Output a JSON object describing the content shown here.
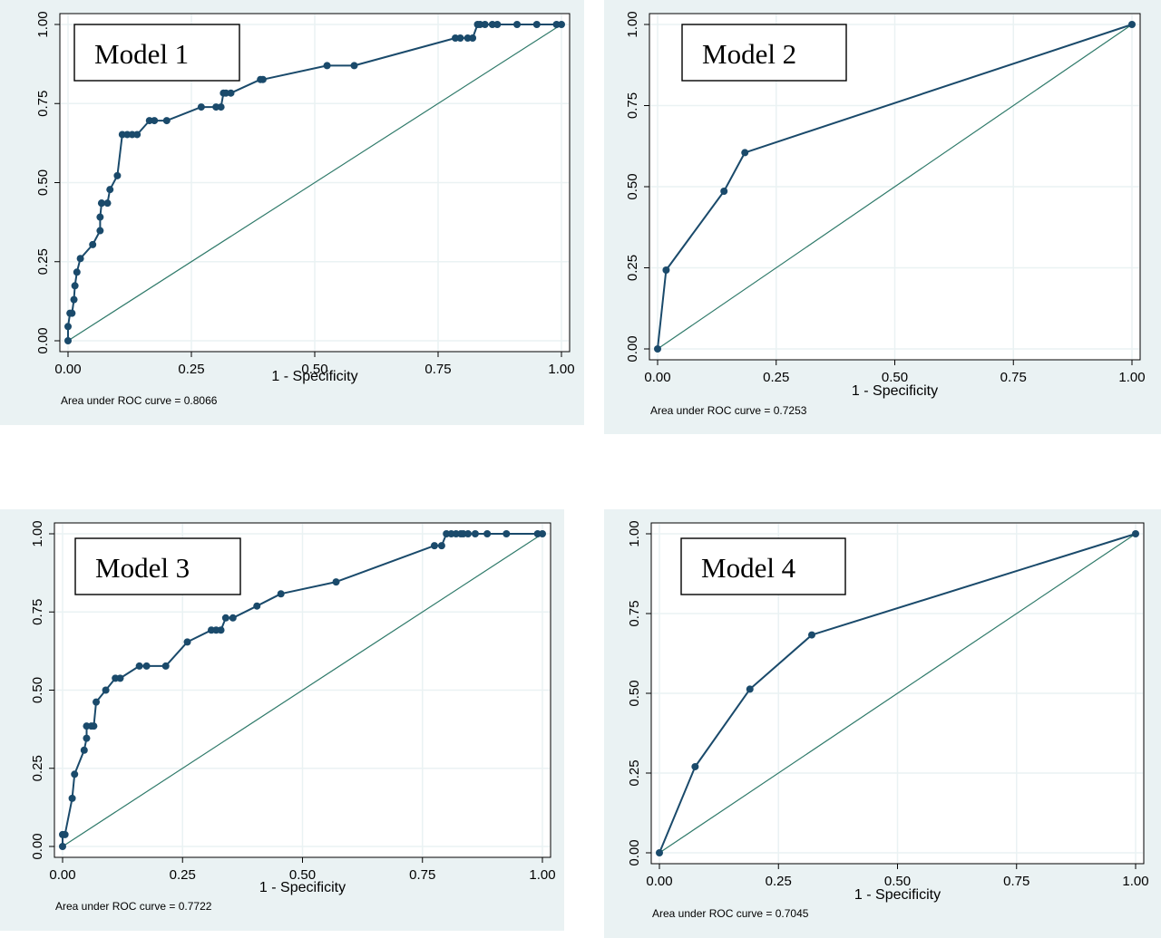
{
  "chart_data": [
    {
      "type": "line",
      "title": "Model 1",
      "xlabel": "1 - Specificity",
      "ylabel": "",
      "note": "Area under ROC curve = 0.8066",
      "xlim": [
        0,
        1
      ],
      "ylim": [
        0,
        1
      ],
      "xticks": [
        "0.00",
        "0.25",
        "0.50",
        "0.75",
        "1.00"
      ],
      "yticks": [
        "0.00",
        "0.25",
        "0.50",
        "0.75",
        "1.00"
      ],
      "grid": true,
      "series": [
        {
          "x": [
            0,
            0,
            0.004,
            0.008,
            0.012,
            0.014,
            0.018,
            0.025,
            0.05,
            0.065,
            0.065,
            0.068,
            0.068,
            0.08,
            0.085,
            0.1,
            0.11,
            0.12,
            0.13,
            0.14,
            0.165,
            0.175,
            0.2,
            0.27,
            0.3,
            0.31,
            0.315,
            0.32,
            0.33,
            0.39,
            0.395,
            0.525,
            0.58,
            0.785,
            0.795,
            0.81,
            0.82,
            0.83,
            0.835,
            0.845,
            0.86,
            0.87,
            0.91,
            0.95,
            0.99,
            1.0
          ],
          "y": [
            0,
            0.045,
            0.087,
            0.087,
            0.13,
            0.174,
            0.217,
            0.26,
            0.304,
            0.348,
            0.391,
            0.435,
            0.435,
            0.435,
            0.478,
            0.522,
            0.652,
            0.652,
            0.652,
            0.652,
            0.696,
            0.696,
            0.696,
            0.739,
            0.739,
            0.739,
            0.783,
            0.783,
            0.783,
            0.826,
            0.826,
            0.87,
            0.87,
            0.957,
            0.957,
            0.957,
            0.957,
            1.0,
            1.0,
            1.0,
            1.0,
            1.0,
            1.0,
            1.0,
            1.0,
            1.0
          ]
        }
      ]
    },
    {
      "type": "line",
      "title": "Model 2",
      "xlabel": "1 - Specificity",
      "ylabel": "",
      "note": "Area under ROC curve = 0.7253",
      "xlim": [
        0,
        1
      ],
      "ylim": [
        0,
        1
      ],
      "xticks": [
        "0.00",
        "0.25",
        "0.50",
        "0.75",
        "1.00"
      ],
      "yticks": [
        "0.00",
        "0.25",
        "0.50",
        "0.75",
        "1.00"
      ],
      "grid": true,
      "series": [
        {
          "x": [
            0,
            0.018,
            0.14,
            0.184,
            1.0
          ],
          "y": [
            0,
            0.243,
            0.486,
            0.605,
            1.0
          ]
        }
      ]
    },
    {
      "type": "line",
      "title": "Model 3",
      "xlabel": "1 - Specificity",
      "ylabel": "",
      "note": "Area under ROC curve = 0.7722",
      "xlim": [
        0,
        1
      ],
      "ylim": [
        0,
        1
      ],
      "xticks": [
        "0.00",
        "0.25",
        "0.50",
        "0.75",
        "1.00"
      ],
      "yticks": [
        "0.00",
        "0.25",
        "0.50",
        "0.75",
        "1.00"
      ],
      "grid": true,
      "series": [
        {
          "x": [
            0,
            0,
            0.005,
            0.02,
            0.025,
            0.045,
            0.05,
            0.05,
            0.06,
            0.065,
            0.07,
            0.09,
            0.11,
            0.12,
            0.16,
            0.175,
            0.215,
            0.26,
            0.31,
            0.32,
            0.33,
            0.34,
            0.355,
            0.405,
            0.455,
            0.57,
            0.775,
            0.79,
            0.8,
            0.81,
            0.82,
            0.83,
            0.835,
            0.845,
            0.86,
            0.885,
            0.925,
            0.99,
            1.0
          ],
          "y": [
            0,
            0.038,
            0.038,
            0.154,
            0.231,
            0.308,
            0.346,
            0.385,
            0.385,
            0.385,
            0.462,
            0.5,
            0.538,
            0.538,
            0.577,
            0.577,
            0.577,
            0.654,
            0.692,
            0.692,
            0.692,
            0.731,
            0.731,
            0.769,
            0.808,
            0.846,
            0.962,
            0.962,
            1.0,
            1.0,
            1.0,
            1.0,
            1.0,
            1.0,
            1.0,
            1.0,
            1.0,
            1.0,
            1.0
          ]
        }
      ]
    },
    {
      "type": "line",
      "title": "Model 4",
      "xlabel": "1 - Specificity",
      "ylabel": "",
      "note": "Area under ROC curve = 0.7045",
      "xlim": [
        0,
        1
      ],
      "ylim": [
        0,
        1
      ],
      "xticks": [
        "0.00",
        "0.25",
        "0.50",
        "0.75",
        "1.00"
      ],
      "yticks": [
        "0.00",
        "0.25",
        "0.50",
        "0.75",
        "1.00"
      ],
      "grid": true,
      "series": [
        {
          "x": [
            0,
            0.075,
            0.19,
            0.32,
            1.0
          ],
          "y": [
            0,
            0.27,
            0.513,
            0.683,
            1.0
          ]
        }
      ]
    }
  ]
}
